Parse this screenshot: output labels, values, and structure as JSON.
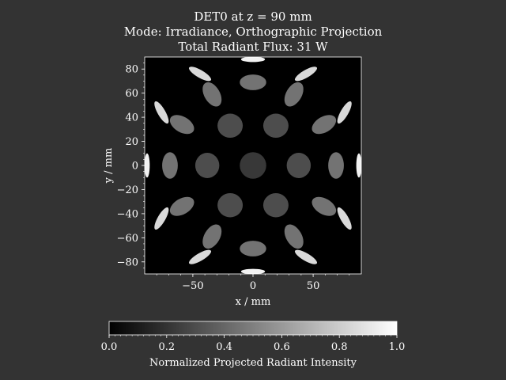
{
  "title_lines": [
    "DET0 at z = 90 mm",
    "Mode: Irradiance, Orthographic Projection",
    "Total Radiant Flux: 31 W"
  ],
  "colors": {
    "figure_background": "#333333",
    "plot_background": "#000000",
    "text": "#ffffff",
    "colormap": [
      "#000000",
      "#ffffff"
    ]
  },
  "chart_data": {
    "type": "heatmap",
    "description_free": true,
    "xlabel": "x / mm",
    "ylabel": "y / mm",
    "xlim": [
      -90,
      90
    ],
    "ylim": [
      -90,
      90
    ],
    "xticks": [
      -50,
      0,
      50
    ],
    "yticks": [
      -80,
      -60,
      -40,
      -20,
      0,
      20,
      40,
      60,
      80
    ],
    "xtick_labels": [
      "−50",
      "0",
      "50"
    ],
    "ytick_labels": [
      "−80",
      "−60",
      "−40",
      "−20",
      "0",
      "20",
      "40",
      "60",
      "80"
    ],
    "colorbar": {
      "label": "Normalized Projected Radiant Intensity",
      "range": [
        0,
        1
      ],
      "ticks": [
        0,
        0.2,
        0.4,
        0.6,
        0.8,
        1.0
      ],
      "tick_labels": [
        "0.0",
        "0.2",
        "0.4",
        "0.6",
        "0.8",
        "1.0"
      ]
    },
    "spots": [
      {
        "x": 0,
        "y": 88,
        "rx": 10,
        "ry": 2.2,
        "angle": 0,
        "intensity": 0.95
      },
      {
        "x": 0,
        "y": -88,
        "rx": 10,
        "ry": 2.2,
        "angle": 0,
        "intensity": 0.95
      },
      {
        "x": -88,
        "y": 0,
        "rx": 2.2,
        "ry": 10,
        "angle": 0,
        "intensity": 0.95
      },
      {
        "x": 88,
        "y": 0,
        "rx": 2.2,
        "ry": 10,
        "angle": 0,
        "intensity": 0.95
      },
      {
        "x": -44,
        "y": 76,
        "rx": 10.5,
        "ry": 3.2,
        "angle": 30,
        "intensity": 0.85
      },
      {
        "x": 44,
        "y": 76,
        "rx": 10.5,
        "ry": 3.2,
        "angle": -30,
        "intensity": 0.85
      },
      {
        "x": -44,
        "y": -76,
        "rx": 10.5,
        "ry": 3.2,
        "angle": -30,
        "intensity": 0.85
      },
      {
        "x": 44,
        "y": -76,
        "rx": 10.5,
        "ry": 3.2,
        "angle": 30,
        "intensity": 0.85
      },
      {
        "x": -76,
        "y": 44,
        "rx": 10.5,
        "ry": 3.2,
        "angle": 60,
        "intensity": 0.85
      },
      {
        "x": 76,
        "y": 44,
        "rx": 10.5,
        "ry": 3.2,
        "angle": -60,
        "intensity": 0.85
      },
      {
        "x": -76,
        "y": -44,
        "rx": 10.5,
        "ry": 3.2,
        "angle": -60,
        "intensity": 0.85
      },
      {
        "x": 76,
        "y": -44,
        "rx": 10.5,
        "ry": 3.2,
        "angle": 60,
        "intensity": 0.85
      },
      {
        "x": 0,
        "y": 69,
        "rx": 11,
        "ry": 6.5,
        "angle": 0,
        "intensity": 0.45
      },
      {
        "x": 0,
        "y": -69,
        "rx": 11,
        "ry": 6.5,
        "angle": 0,
        "intensity": 0.45
      },
      {
        "x": -34,
        "y": 59,
        "rx": 11,
        "ry": 6.5,
        "angle": 60,
        "intensity": 0.45
      },
      {
        "x": 34,
        "y": 59,
        "rx": 11,
        "ry": 6.5,
        "angle": -60,
        "intensity": 0.45
      },
      {
        "x": -34,
        "y": -59,
        "rx": 11,
        "ry": 6.5,
        "angle": -60,
        "intensity": 0.45
      },
      {
        "x": 34,
        "y": -59,
        "rx": 11,
        "ry": 6.5,
        "angle": 60,
        "intensity": 0.45
      },
      {
        "x": -59,
        "y": 34,
        "rx": 11,
        "ry": 6.5,
        "angle": 30,
        "intensity": 0.45
      },
      {
        "x": 59,
        "y": 34,
        "rx": 11,
        "ry": 6.5,
        "angle": -30,
        "intensity": 0.45
      },
      {
        "x": -59,
        "y": -34,
        "rx": 11,
        "ry": 6.5,
        "angle": -30,
        "intensity": 0.45
      },
      {
        "x": 59,
        "y": -34,
        "rx": 11,
        "ry": 6.5,
        "angle": 30,
        "intensity": 0.45
      },
      {
        "x": -69,
        "y": 0,
        "rx": 6.5,
        "ry": 11,
        "angle": 0,
        "intensity": 0.45
      },
      {
        "x": 69,
        "y": 0,
        "rx": 6.5,
        "ry": 11,
        "angle": 0,
        "intensity": 0.45
      },
      {
        "x": -19,
        "y": 33,
        "rx": 10.5,
        "ry": 10,
        "angle": 0,
        "intensity": 0.3
      },
      {
        "x": 19,
        "y": 33,
        "rx": 10.5,
        "ry": 10,
        "angle": 0,
        "intensity": 0.3
      },
      {
        "x": -19,
        "y": -33,
        "rx": 10.5,
        "ry": 10,
        "angle": 0,
        "intensity": 0.3
      },
      {
        "x": 19,
        "y": -33,
        "rx": 10.5,
        "ry": 10,
        "angle": 0,
        "intensity": 0.3
      },
      {
        "x": -38,
        "y": 0,
        "rx": 10,
        "ry": 10.5,
        "angle": 0,
        "intensity": 0.3
      },
      {
        "x": 38,
        "y": 0,
        "rx": 10,
        "ry": 10.5,
        "angle": 0,
        "intensity": 0.3
      },
      {
        "x": 0,
        "y": 0,
        "rx": 11,
        "ry": 11,
        "angle": 0,
        "intensity": 0.22
      }
    ]
  }
}
